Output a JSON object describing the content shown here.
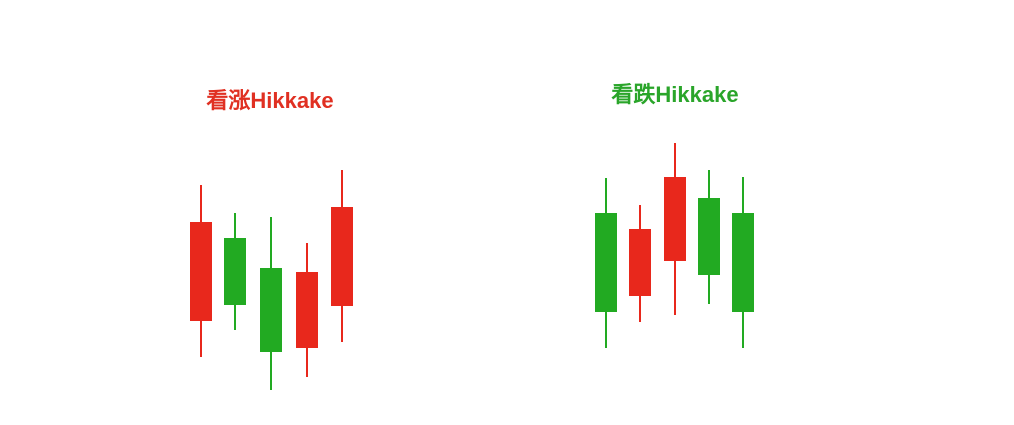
{
  "bullish": {
    "title": "看涨Hikkake"
  },
  "bearish": {
    "title": "看跌Hikkake"
  }
}
